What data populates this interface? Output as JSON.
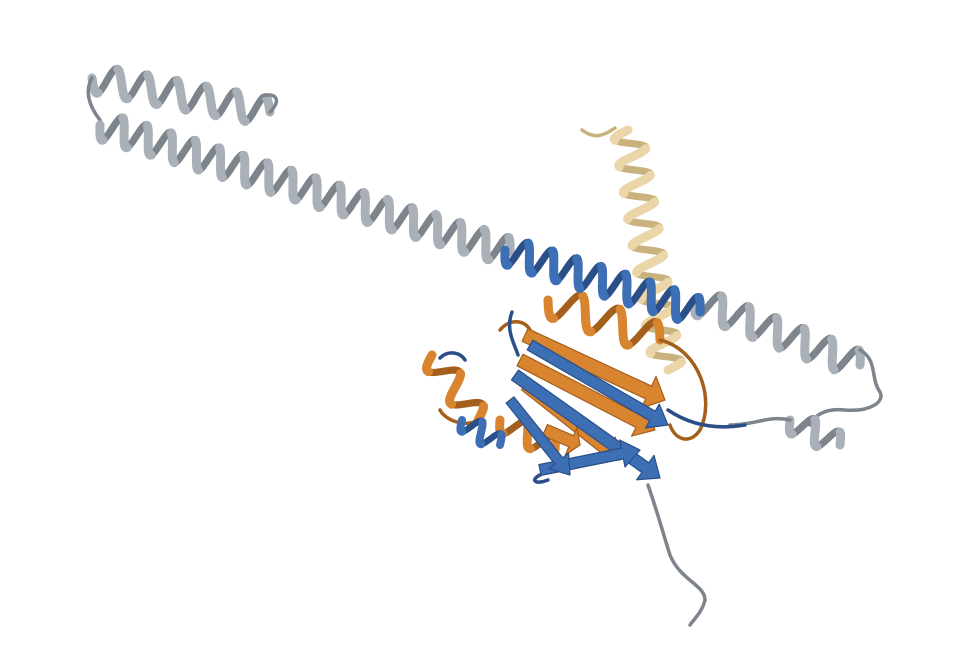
{
  "scene": {
    "background": "#ffffff",
    "colors": {
      "chain_grey": "#a9b0b8",
      "chain_grey_shadow": "#7d848c",
      "chain_blue": "#3d6fb5",
      "chain_blue_shadow": "#2a4f88",
      "chain_orange": "#d9842f",
      "chain_orange_shadow": "#a55f1d",
      "chain_tan": "#ead6a8",
      "chain_tan_shadow": "#c9b27d"
    }
  }
}
